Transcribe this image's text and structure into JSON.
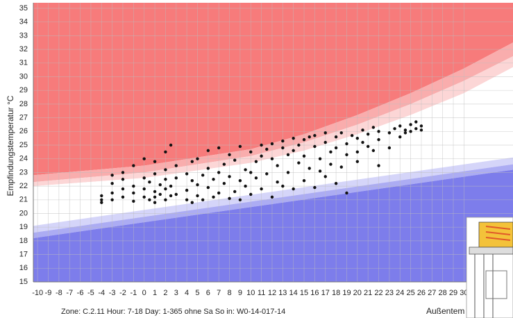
{
  "chart_data": {
    "type": "scatter",
    "y_label": "Empfindungstemperatur °C",
    "x_label": "Außentem",
    "footer": "Zone: C.2.11 Hour: 7-18 Day: 1-365 ohne Sa So  in: W0-14-017-14",
    "xlim": [
      -10.4,
      34.6
    ],
    "ylim": [
      15,
      35
    ],
    "xticks": [
      -10,
      -9,
      -8,
      -7,
      -6,
      -5,
      -4,
      -3,
      -2,
      -1,
      0,
      1,
      2,
      3,
      4,
      5,
      6,
      7,
      8,
      9,
      10,
      11,
      12,
      13,
      14,
      15,
      16,
      17,
      18,
      19,
      20,
      21,
      22,
      23,
      24,
      25,
      26,
      27,
      28,
      29,
      30
    ],
    "yticks": [
      15,
      16,
      17,
      18,
      19,
      20,
      21,
      22,
      23,
      24,
      25,
      26,
      27,
      28,
      29,
      30,
      31,
      32,
      33,
      34,
      35
    ],
    "grid": true,
    "band_x": [
      -10.4,
      0,
      10,
      15,
      20,
      25,
      30,
      34.6
    ],
    "boundaries": [
      [
        22.8,
        23.5,
        24.7,
        25.8,
        27.2,
        28.8,
        30.6,
        32.5
      ],
      [
        22.3,
        23.0,
        24.2,
        25.2,
        26.5,
        28.0,
        29.7,
        31.5
      ],
      [
        22.0,
        22.6,
        23.7,
        24.6,
        25.8,
        27.2,
        28.8,
        30.7
      ],
      [
        19.1,
        20.26,
        21.37,
        21.92,
        22.48,
        23.03,
        23.59,
        24.1
      ],
      [
        18.6,
        19.76,
        20.87,
        21.42,
        21.98,
        22.53,
        23.09,
        23.6
      ],
      [
        18.2,
        19.36,
        20.47,
        21.02,
        21.58,
        22.13,
        22.69,
        23.2
      ]
    ],
    "fill_colors": [
      "#f77b7b",
      "#f9adad",
      "#fcd6d6",
      "#ffffff",
      "#d5d5f9",
      "#acacf3",
      "#7d7deb"
    ],
    "point_color": "#111111",
    "x": [
      -4,
      -4,
      -4,
      -3,
      -3,
      -3,
      -3,
      -2,
      -2,
      -2,
      -2,
      -1,
      -1,
      -1,
      -1,
      0,
      0,
      0,
      0,
      0.5,
      0.5,
      1,
      1,
      1,
      1,
      1,
      1.5,
      1.5,
      2,
      2,
      2,
      2,
      2,
      2.5,
      2.5,
      2.5,
      3,
      3,
      3,
      4,
      4,
      4,
      4.5,
      4.5,
      4.5,
      5,
      5,
      5,
      5.5,
      5.5,
      6,
      6,
      6,
      6.5,
      6.5,
      7,
      7,
      7,
      7.5,
      7.5,
      8,
      8,
      8,
      8.5,
      8.5,
      9,
      9,
      9,
      9.5,
      9.5,
      10,
      10,
      10,
      10.5,
      10.5,
      11,
      11,
      11,
      11.5,
      11.5,
      12,
      12,
      12,
      12.5,
      12.5,
      13,
      13,
      13,
      13.5,
      13.5,
      14,
      14,
      14,
      14.5,
      14.5,
      15,
      15,
      15,
      15.5,
      15.5,
      16,
      16,
      16,
      16.5,
      16.5,
      17,
      17,
      17,
      17.5,
      17.5,
      18,
      18,
      18,
      18.5,
      18.5,
      19,
      19,
      19,
      19.5,
      20,
      20,
      20,
      20.5,
      20.5,
      21,
      21,
      21.5,
      21.5,
      22,
      22,
      22,
      23,
      23,
      23.5,
      24,
      24,
      24.5,
      24.5,
      25,
      25,
      25.5,
      25.5,
      26,
      26
    ],
    "y": [
      21.3,
      20.8,
      21.0,
      21.5,
      22.8,
      22.2,
      21.0,
      22.5,
      21.8,
      21.2,
      23.0,
      22.0,
      21.5,
      20.9,
      23.5,
      21.2,
      22.6,
      24.0,
      21.8,
      22.3,
      21.0,
      21.6,
      22.9,
      23.8,
      21.2,
      20.8,
      22.1,
      21.4,
      21.0,
      22.5,
      24.5,
      21.8,
      23.2,
      22.0,
      25.0,
      21.3,
      21.4,
      22.6,
      23.5,
      21.7,
      22.9,
      21.0,
      22.4,
      23.8,
      20.8,
      21.3,
      22.1,
      24.0,
      22.8,
      21.0,
      21.9,
      23.3,
      24.6,
      22.5,
      21.2,
      23.0,
      21.5,
      24.8,
      22.2,
      23.6,
      21.1,
      22.7,
      24.3,
      23.9,
      21.6,
      22.4,
      24.9,
      21.0,
      23.2,
      22.0,
      24.5,
      21.4,
      23.0,
      23.8,
      22.6,
      25.0,
      21.8,
      24.2,
      22.9,
      24.7,
      24.0,
      21.2,
      25.1,
      23.5,
      22.3,
      24.8,
      22.0,
      25.3,
      23.0,
      24.3,
      25.5,
      21.8,
      24.6,
      23.7,
      25.0,
      25.4,
      22.4,
      24.2,
      23.3,
      25.6,
      24.9,
      21.9,
      25.7,
      24.0,
      23.1,
      25.2,
      22.7,
      25.9,
      24.5,
      23.6,
      25.6,
      22.2,
      24.8,
      25.9,
      23.4,
      25.1,
      21.5,
      24.3,
      25.7,
      25.5,
      24.5,
      23.8,
      26.1,
      25.2,
      24.9,
      25.8,
      26.3,
      24.6,
      25.4,
      23.5,
      26.0,
      25.9,
      24.8,
      26.2,
      25.6,
      26.4,
      26.1,
      25.9,
      26.5,
      26.0,
      26.7,
      26.2,
      26.1,
      26.4
    ]
  }
}
